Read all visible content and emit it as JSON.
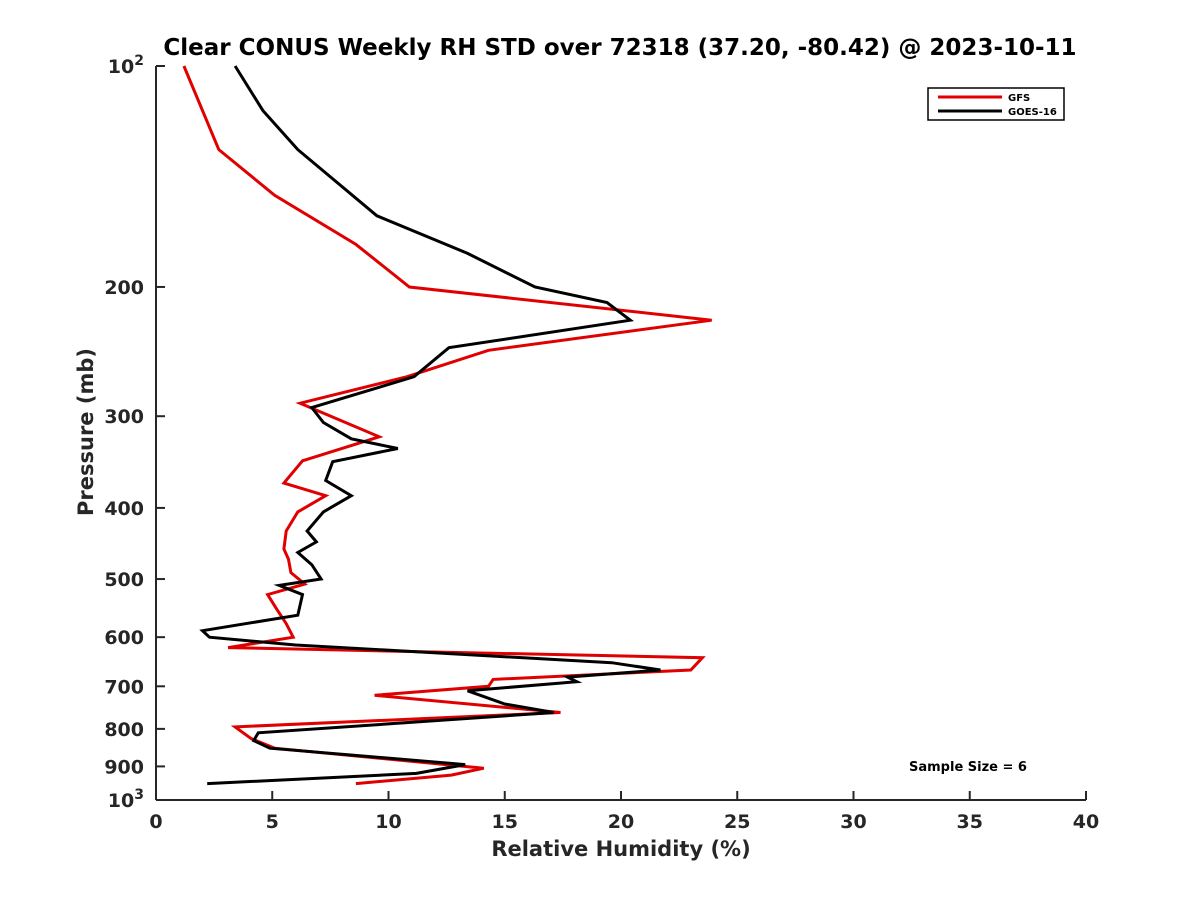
{
  "chart_data": {
    "type": "line",
    "title": "Clear CONUS Weekly RH STD over 72318 (37.20, -80.42) @ 2023-10-11",
    "xlabel": "Relative Humidity (%)",
    "ylabel": "Pressure (mb)",
    "xlim": [
      0,
      40
    ],
    "ylim": [
      100,
      1000
    ],
    "y_scale": "log",
    "y_reversed": true,
    "grid": false,
    "legend_position": "top-right",
    "x_ticks": [
      0,
      5,
      10,
      15,
      20,
      25,
      30,
      35,
      40
    ],
    "x_tick_labels": [
      "0",
      "5",
      "10",
      "15",
      "20",
      "25",
      "30",
      "35",
      "40"
    ],
    "y_ticks": [
      100,
      200,
      300,
      400,
      500,
      600,
      700,
      800,
      900,
      1000
    ],
    "y_tick_labels": [
      {
        "base": "10",
        "exp": "2"
      },
      {
        "base": "200",
        "exp": ""
      },
      {
        "base": "300",
        "exp": ""
      },
      {
        "base": "400",
        "exp": ""
      },
      {
        "base": "500",
        "exp": ""
      },
      {
        "base": "600",
        "exp": ""
      },
      {
        "base": "700",
        "exp": ""
      },
      {
        "base": "800",
        "exp": ""
      },
      {
        "base": "900",
        "exp": ""
      },
      {
        "base": "10",
        "exp": "3"
      }
    ],
    "annotation": "Sample Size = 6",
    "series": [
      {
        "name": "GFS",
        "color": "#e00000",
        "x": [
          1.2,
          2.7,
          5.1,
          8.6,
          10.9,
          23.9,
          14.3,
          10.8,
          6.2,
          9.6,
          6.3,
          5.5,
          7.3,
          6.1,
          5.6,
          5.5,
          5.7,
          5.8,
          6.4,
          4.8,
          5.2,
          5.6,
          5.9,
          3.1,
          23.5,
          23.0,
          14.5,
          14.3,
          9.4,
          17.4,
          3.4,
          4.1,
          5.1,
          14.1,
          12.7,
          8.6
        ],
        "y": [
          100,
          130,
          150,
          175,
          200,
          222,
          244,
          265,
          288,
          320,
          345,
          370,
          385,
          405,
          430,
          455,
          470,
          490,
          508,
          525,
          550,
          575,
          600,
          620,
          640,
          665,
          685,
          700,
          720,
          760,
          795,
          825,
          850,
          905,
          925,
          950
        ]
      },
      {
        "name": "GOES-16",
        "color": "#000000",
        "x": [
          3.4,
          4.6,
          6.1,
          9.5,
          13.4,
          16.3,
          19.4,
          20.4,
          12.6,
          11.1,
          6.7,
          7.2,
          8.4,
          10.4,
          7.6,
          7.3,
          8.4,
          7.2,
          6.5,
          6.9,
          6.1,
          6.7,
          7.1,
          5.3,
          6.3,
          6.1,
          2.0,
          2.3,
          6.0,
          19.6,
          21.7,
          17.7,
          18.1,
          13.4,
          15.0,
          17.1,
          10.7,
          4.4,
          4.2,
          4.9,
          13.3,
          11.2,
          2.2
        ],
        "y": [
          100,
          115,
          130,
          160,
          180,
          200,
          210,
          222,
          242,
          265,
          292,
          306,
          322,
          332,
          346,
          367,
          385,
          405,
          430,
          445,
          460,
          478,
          500,
          510,
          525,
          560,
          588,
          600,
          615,
          650,
          665,
          680,
          690,
          710,
          740,
          760,
          785,
          810,
          830,
          850,
          895,
          920,
          950
        ]
      }
    ]
  }
}
